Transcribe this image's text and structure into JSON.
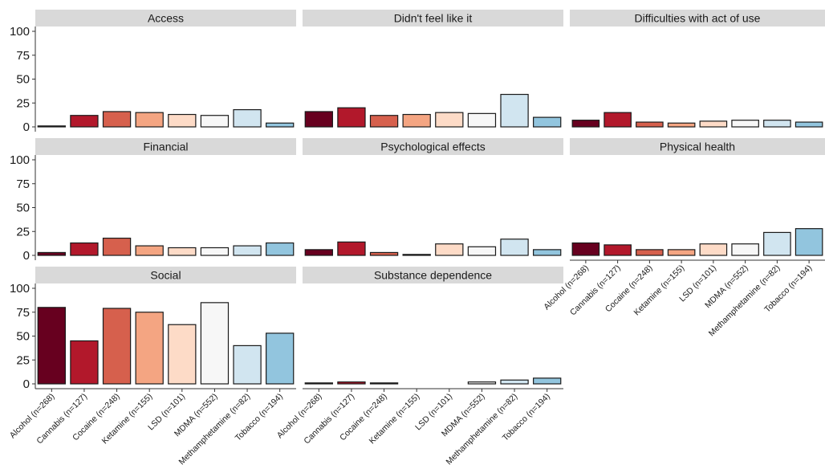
{
  "chart_data": {
    "type": "bar",
    "layout": "faceted small multiples, 3 columns",
    "categories": [
      "Alcohol (n=268)",
      "Cannabis (n=127)",
      "Cocaine (n=248)",
      "Ketamine (n=155)",
      "LSD (n=101)",
      "MDMA (n=552)",
      "Methamphetamine (n=82)",
      "Tobacco (n=194)"
    ],
    "colors": [
      "#67001f",
      "#b2182b",
      "#d6604d",
      "#f4a582",
      "#fddbc7",
      "#f7f7f7",
      "#d1e5f0",
      "#92c5de"
    ],
    "ylim": [
      0,
      100
    ],
    "yticks": [
      "0",
      "25",
      "50",
      "75",
      "100"
    ],
    "grid": false,
    "legend": "none",
    "facets": [
      {
        "title": "Access",
        "values": [
          1,
          12,
          16,
          15,
          13,
          12,
          18,
          4
        ]
      },
      {
        "title": "Didn't feel like it",
        "values": [
          16,
          20,
          12,
          13,
          15,
          14,
          34,
          10
        ]
      },
      {
        "title": "Difficulties with act of use",
        "values": [
          7,
          15,
          5,
          4,
          6,
          7,
          7,
          5
        ]
      },
      {
        "title": "Financial",
        "values": [
          3,
          13,
          18,
          10,
          8,
          8,
          10,
          13
        ]
      },
      {
        "title": "Psychological effects",
        "values": [
          6,
          14,
          3,
          1,
          12,
          9,
          17,
          6
        ]
      },
      {
        "title": "Physical health",
        "values": [
          13,
          11,
          6,
          6,
          12,
          12,
          24,
          28
        ]
      },
      {
        "title": "Social",
        "values": [
          80,
          45,
          79,
          75,
          62,
          85,
          40,
          53
        ]
      },
      {
        "title": "Substance dependence",
        "values": [
          1,
          2,
          1,
          0,
          0,
          2,
          4,
          6
        ]
      }
    ]
  }
}
